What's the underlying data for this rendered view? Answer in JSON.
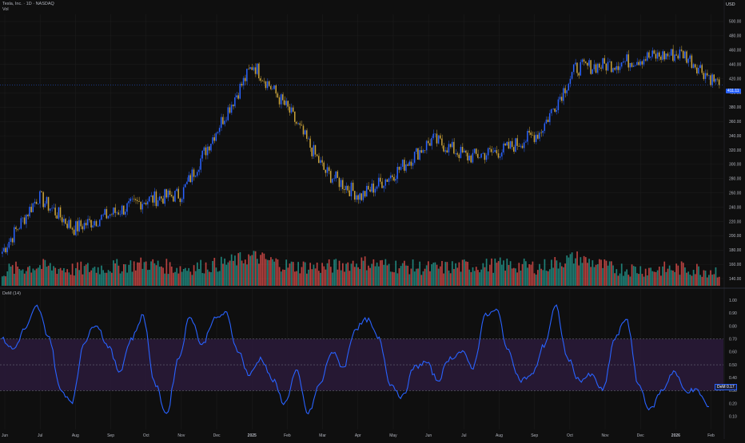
{
  "header": {
    "symbol_line": "Tesla, Inc. · 1D · NASDAQ",
    "volume_label": "Vol",
    "currency": "USD"
  },
  "oscillator": {
    "label": "DeM (14)",
    "current_badge": "0.17",
    "badge_prefix": "DeM"
  },
  "price_badge": "411.11",
  "volume_badge": "",
  "colors": {
    "up": "#2962ff",
    "down": "#c9a33b",
    "vol_up": "#26a69a",
    "vol_down": "#ef5350",
    "osc_line": "#2962ff",
    "osc_band": "#2a1a3a",
    "background": "#0f0f0f",
    "grid": "#1e1e1e"
  },
  "chart_data": [
    {
      "type": "candlestick",
      "title": "Tesla, Inc. · 1D · NASDAQ",
      "ylabel": "USD",
      "ylim": [
        130,
        510
      ],
      "y_ticks": [
        140,
        160,
        180,
        200,
        220,
        240,
        260,
        280,
        300,
        320,
        340,
        360,
        380,
        400,
        420,
        440,
        460,
        480,
        500
      ],
      "x_ticks": [
        "Jun",
        "Jul",
        "Aug",
        "Sep",
        "Oct",
        "Nov",
        "Dec",
        "2025",
        "Feb",
        "Mar",
        "Apr",
        "May",
        "Jun",
        "Jul",
        "Aug",
        "Sep",
        "Oct",
        "Nov",
        "Dec",
        "2026",
        "Feb"
      ],
      "close_anchors": [
        {
          "x": "Jun",
          "close": 178
        },
        {
          "x": "Jul",
          "close": 255
        },
        {
          "x": "Aug",
          "close": 210
        },
        {
          "x": "Sep",
          "close": 230
        },
        {
          "x": "Oct",
          "close": 250
        },
        {
          "x": "Nov",
          "close": 258
        },
        {
          "x": "Dec",
          "close": 350
        },
        {
          "x": "2025",
          "close": 440
        },
        {
          "x": "Feb",
          "close": 375
        },
        {
          "x": "Mar",
          "close": 290
        },
        {
          "x": "Apr",
          "close": 255
        },
        {
          "x": "May",
          "close": 290
        },
        {
          "x": "Jun",
          "close": 335
        },
        {
          "x": "Jul",
          "close": 310
        },
        {
          "x": "Aug",
          "close": 320
        },
        {
          "x": "Sep",
          "close": 345
        },
        {
          "x": "Oct",
          "close": 435
        },
        {
          "x": "Nov",
          "close": 440
        },
        {
          "x": "Dec",
          "close": 450
        },
        {
          "x": "2026",
          "close": 455
        },
        {
          "x": "Feb",
          "close": 411
        }
      ],
      "last_price": 411.11
    },
    {
      "type": "bar",
      "title": "Vol",
      "description_series": "volume",
      "relative_levels": [
        0.3,
        0.5,
        0.35,
        0.45,
        0.6,
        0.4,
        0.55,
        0.9,
        0.5,
        0.45,
        0.65,
        0.5,
        0.4,
        0.5,
        0.55,
        0.45,
        0.85,
        0.4,
        0.35,
        0.4,
        0.3
      ]
    },
    {
      "type": "line",
      "title": "DeM (14)",
      "ylim": [
        0,
        1.05
      ],
      "y_ticks": [
        0.1,
        0.2,
        0.3,
        0.4,
        0.5,
        0.6,
        0.7,
        0.8,
        0.9,
        1.0
      ],
      "bands": [
        0.3,
        0.7
      ],
      "values": [
        0.7,
        0.62,
        0.78,
        0.95,
        0.72,
        0.3,
        0.22,
        0.68,
        0.82,
        0.65,
        0.45,
        0.7,
        0.88,
        0.35,
        0.12,
        0.55,
        0.88,
        0.65,
        0.85,
        0.9,
        0.62,
        0.42,
        0.55,
        0.38,
        0.2,
        0.45,
        0.12,
        0.35,
        0.6,
        0.48,
        0.78,
        0.85,
        0.7,
        0.35,
        0.25,
        0.48,
        0.52,
        0.38,
        0.55,
        0.6,
        0.48,
        0.88,
        0.92,
        0.6,
        0.38,
        0.42,
        0.65,
        0.95,
        0.55,
        0.38,
        0.42,
        0.3,
        0.7,
        0.86,
        0.35,
        0.15,
        0.3,
        0.45,
        0.3,
        0.3,
        0.17
      ]
    }
  ]
}
